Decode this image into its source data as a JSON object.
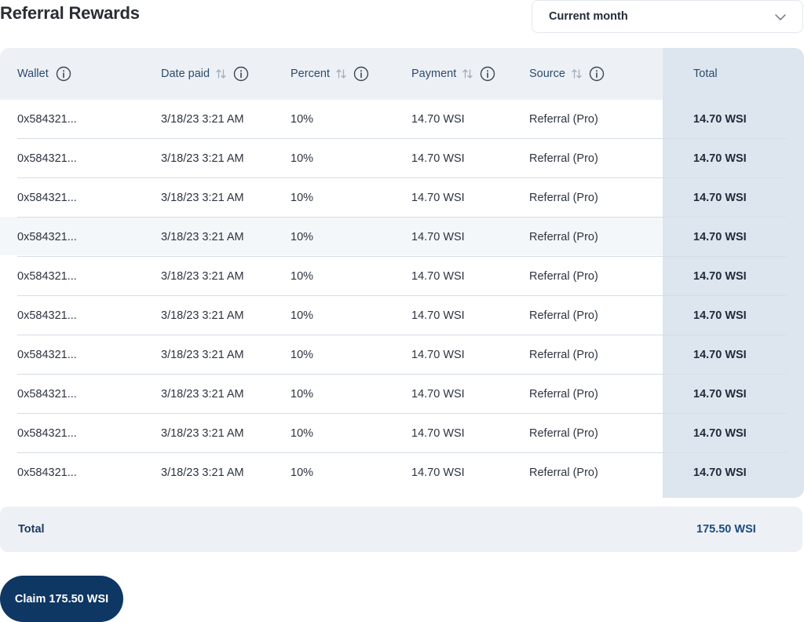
{
  "page": {
    "title": "Referral Rewards"
  },
  "period_select": {
    "value": "Current month"
  },
  "table": {
    "columns": {
      "wallet": "Wallet",
      "date_paid": "Date paid",
      "percent": "Percent",
      "payment": "Payment",
      "source": "Source",
      "total": "Total"
    },
    "rows": [
      {
        "wallet": "0x584321...",
        "date_paid": "3/18/23 3:21 AM",
        "percent": "10%",
        "payment": "14.70 WSI",
        "source": "Referral (Pro)",
        "total": "14.70 WSI"
      },
      {
        "wallet": "0x584321...",
        "date_paid": "3/18/23 3:21 AM",
        "percent": "10%",
        "payment": "14.70 WSI",
        "source": "Referral (Pro)",
        "total": "14.70 WSI"
      },
      {
        "wallet": "0x584321...",
        "date_paid": "3/18/23 3:21 AM",
        "percent": "10%",
        "payment": "14.70 WSI",
        "source": "Referral (Pro)",
        "total": "14.70 WSI"
      },
      {
        "wallet": "0x584321...",
        "date_paid": "3/18/23 3:21 AM",
        "percent": "10%",
        "payment": "14.70 WSI",
        "source": "Referral (Pro)",
        "total": "14.70 WSI"
      },
      {
        "wallet": "0x584321...",
        "date_paid": "3/18/23 3:21 AM",
        "percent": "10%",
        "payment": "14.70 WSI",
        "source": "Referral (Pro)",
        "total": "14.70 WSI"
      },
      {
        "wallet": "0x584321...",
        "date_paid": "3/18/23 3:21 AM",
        "percent": "10%",
        "payment": "14.70 WSI",
        "source": "Referral (Pro)",
        "total": "14.70 WSI"
      },
      {
        "wallet": "0x584321...",
        "date_paid": "3/18/23 3:21 AM",
        "percent": "10%",
        "payment": "14.70 WSI",
        "source": "Referral (Pro)",
        "total": "14.70 WSI"
      },
      {
        "wallet": "0x584321...",
        "date_paid": "3/18/23 3:21 AM",
        "percent": "10%",
        "payment": "14.70 WSI",
        "source": "Referral (Pro)",
        "total": "14.70 WSI"
      },
      {
        "wallet": "0x584321...",
        "date_paid": "3/18/23 3:21 AM",
        "percent": "10%",
        "payment": "14.70 WSI",
        "source": "Referral (Pro)",
        "total": "14.70 WSI"
      },
      {
        "wallet": "0x584321...",
        "date_paid": "3/18/23 3:21 AM",
        "percent": "10%",
        "payment": "14.70 WSI",
        "source": "Referral (Pro)",
        "total": "14.70 WSI"
      }
    ]
  },
  "summary": {
    "label": "Total",
    "amount": "175.50 WSI"
  },
  "claim_button": {
    "label": "Claim 175.50 WSI"
  },
  "colors": {
    "brand_dark": "#0e3763",
    "header_band": "#edf1f5",
    "total_column": "#dde6ef",
    "header_text": "#2b4a6f"
  },
  "icons": {
    "select": "chevron-down-icon",
    "sort": "sort-icon",
    "info": "info-icon"
  }
}
